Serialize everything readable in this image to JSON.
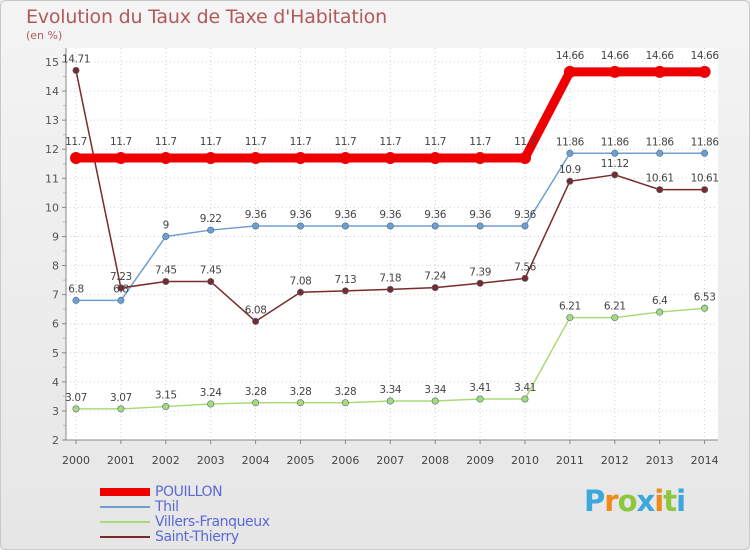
{
  "title": "Evolution du Taux de Taxe d'Habitation",
  "unit_label": "(en %)",
  "brand": {
    "letters": [
      {
        "ch": "P",
        "color": "#3aa7dd"
      },
      {
        "ch": "r",
        "color": "#f08a1c"
      },
      {
        "ch": "o",
        "color": "#8dc63f"
      },
      {
        "ch": "x",
        "color": "#3aa7dd"
      },
      {
        "ch": "i",
        "color": "#f08a1c"
      },
      {
        "ch": "t",
        "color": "#8dc63f"
      },
      {
        "ch": "i",
        "color": "#3aa7dd"
      }
    ]
  },
  "chart_data": {
    "type": "line",
    "title": "Evolution du Taux de Taxe d'Habitation",
    "ylabel": "(en %)",
    "xlabel": "",
    "ylim": [
      2,
      15
    ],
    "yticks": [
      "2",
      "3",
      "4",
      "5",
      "6",
      "7",
      "8",
      "9",
      "10",
      "11",
      "12",
      "13",
      "14",
      "15"
    ],
    "x": [
      "2000",
      "2001",
      "2002",
      "2003",
      "2004",
      "2005",
      "2006",
      "2007",
      "2008",
      "2009",
      "2010",
      "2011",
      "2012",
      "2013",
      "2014"
    ],
    "series": [
      {
        "name": "POUILLON",
        "color": "#ee0000",
        "values": [
          11.7,
          11.7,
          11.7,
          11.7,
          11.7,
          11.7,
          11.7,
          11.7,
          11.7,
          11.7,
          11.7,
          14.66,
          14.66,
          14.66,
          14.66
        ],
        "labels": [
          "11.7",
          "11.7",
          "11.7",
          "11.7",
          "11.7",
          "11.7",
          "11.7",
          "11.7",
          "11.7",
          "11.7",
          "11.7",
          "14.66",
          "14.66",
          "14.66",
          "14.66"
        ]
      },
      {
        "name": "Thil",
        "color": "#6f9fcf",
        "values": [
          6.8,
          6.8,
          9,
          9.22,
          9.36,
          9.36,
          9.36,
          9.36,
          9.36,
          9.36,
          9.36,
          11.86,
          11.86,
          11.86,
          11.86
        ],
        "labels": [
          "6.8",
          "6.8",
          "9",
          "9.22",
          "9.36",
          "9.36",
          "9.36",
          "9.36",
          "9.36",
          "9.36",
          "9.36",
          "11.86",
          "11.86",
          "11.86",
          "11.86"
        ]
      },
      {
        "name": "Villers-Franqueux",
        "color": "#a8db75",
        "values": [
          3.07,
          3.07,
          3.15,
          3.24,
          3.28,
          3.28,
          3.28,
          3.34,
          3.34,
          3.41,
          3.41,
          6.21,
          6.21,
          6.4,
          6.53
        ],
        "labels": [
          "3.07",
          "3.07",
          "3.15",
          "3.24",
          "3.28",
          "3.28",
          "3.28",
          "3.34",
          "3.34",
          "3.41",
          "3.41",
          "6.21",
          "6.21",
          "6.4",
          "6.53"
        ]
      },
      {
        "name": "Saint-Thierry",
        "color": "#7a2a2a",
        "values": [
          14.71,
          7.23,
          7.45,
          7.45,
          6.08,
          7.08,
          7.13,
          7.18,
          7.24,
          7.39,
          7.56,
          10.9,
          11.12,
          10.61,
          10.61
        ],
        "labels": [
          "14.71",
          "7.23",
          "7.45",
          "7.45",
          "6.08",
          "7.08",
          "7.13",
          "7.18",
          "7.24",
          "7.39",
          "7.56",
          "10.9",
          "11.12",
          "10.61",
          "10.61"
        ]
      }
    ]
  }
}
